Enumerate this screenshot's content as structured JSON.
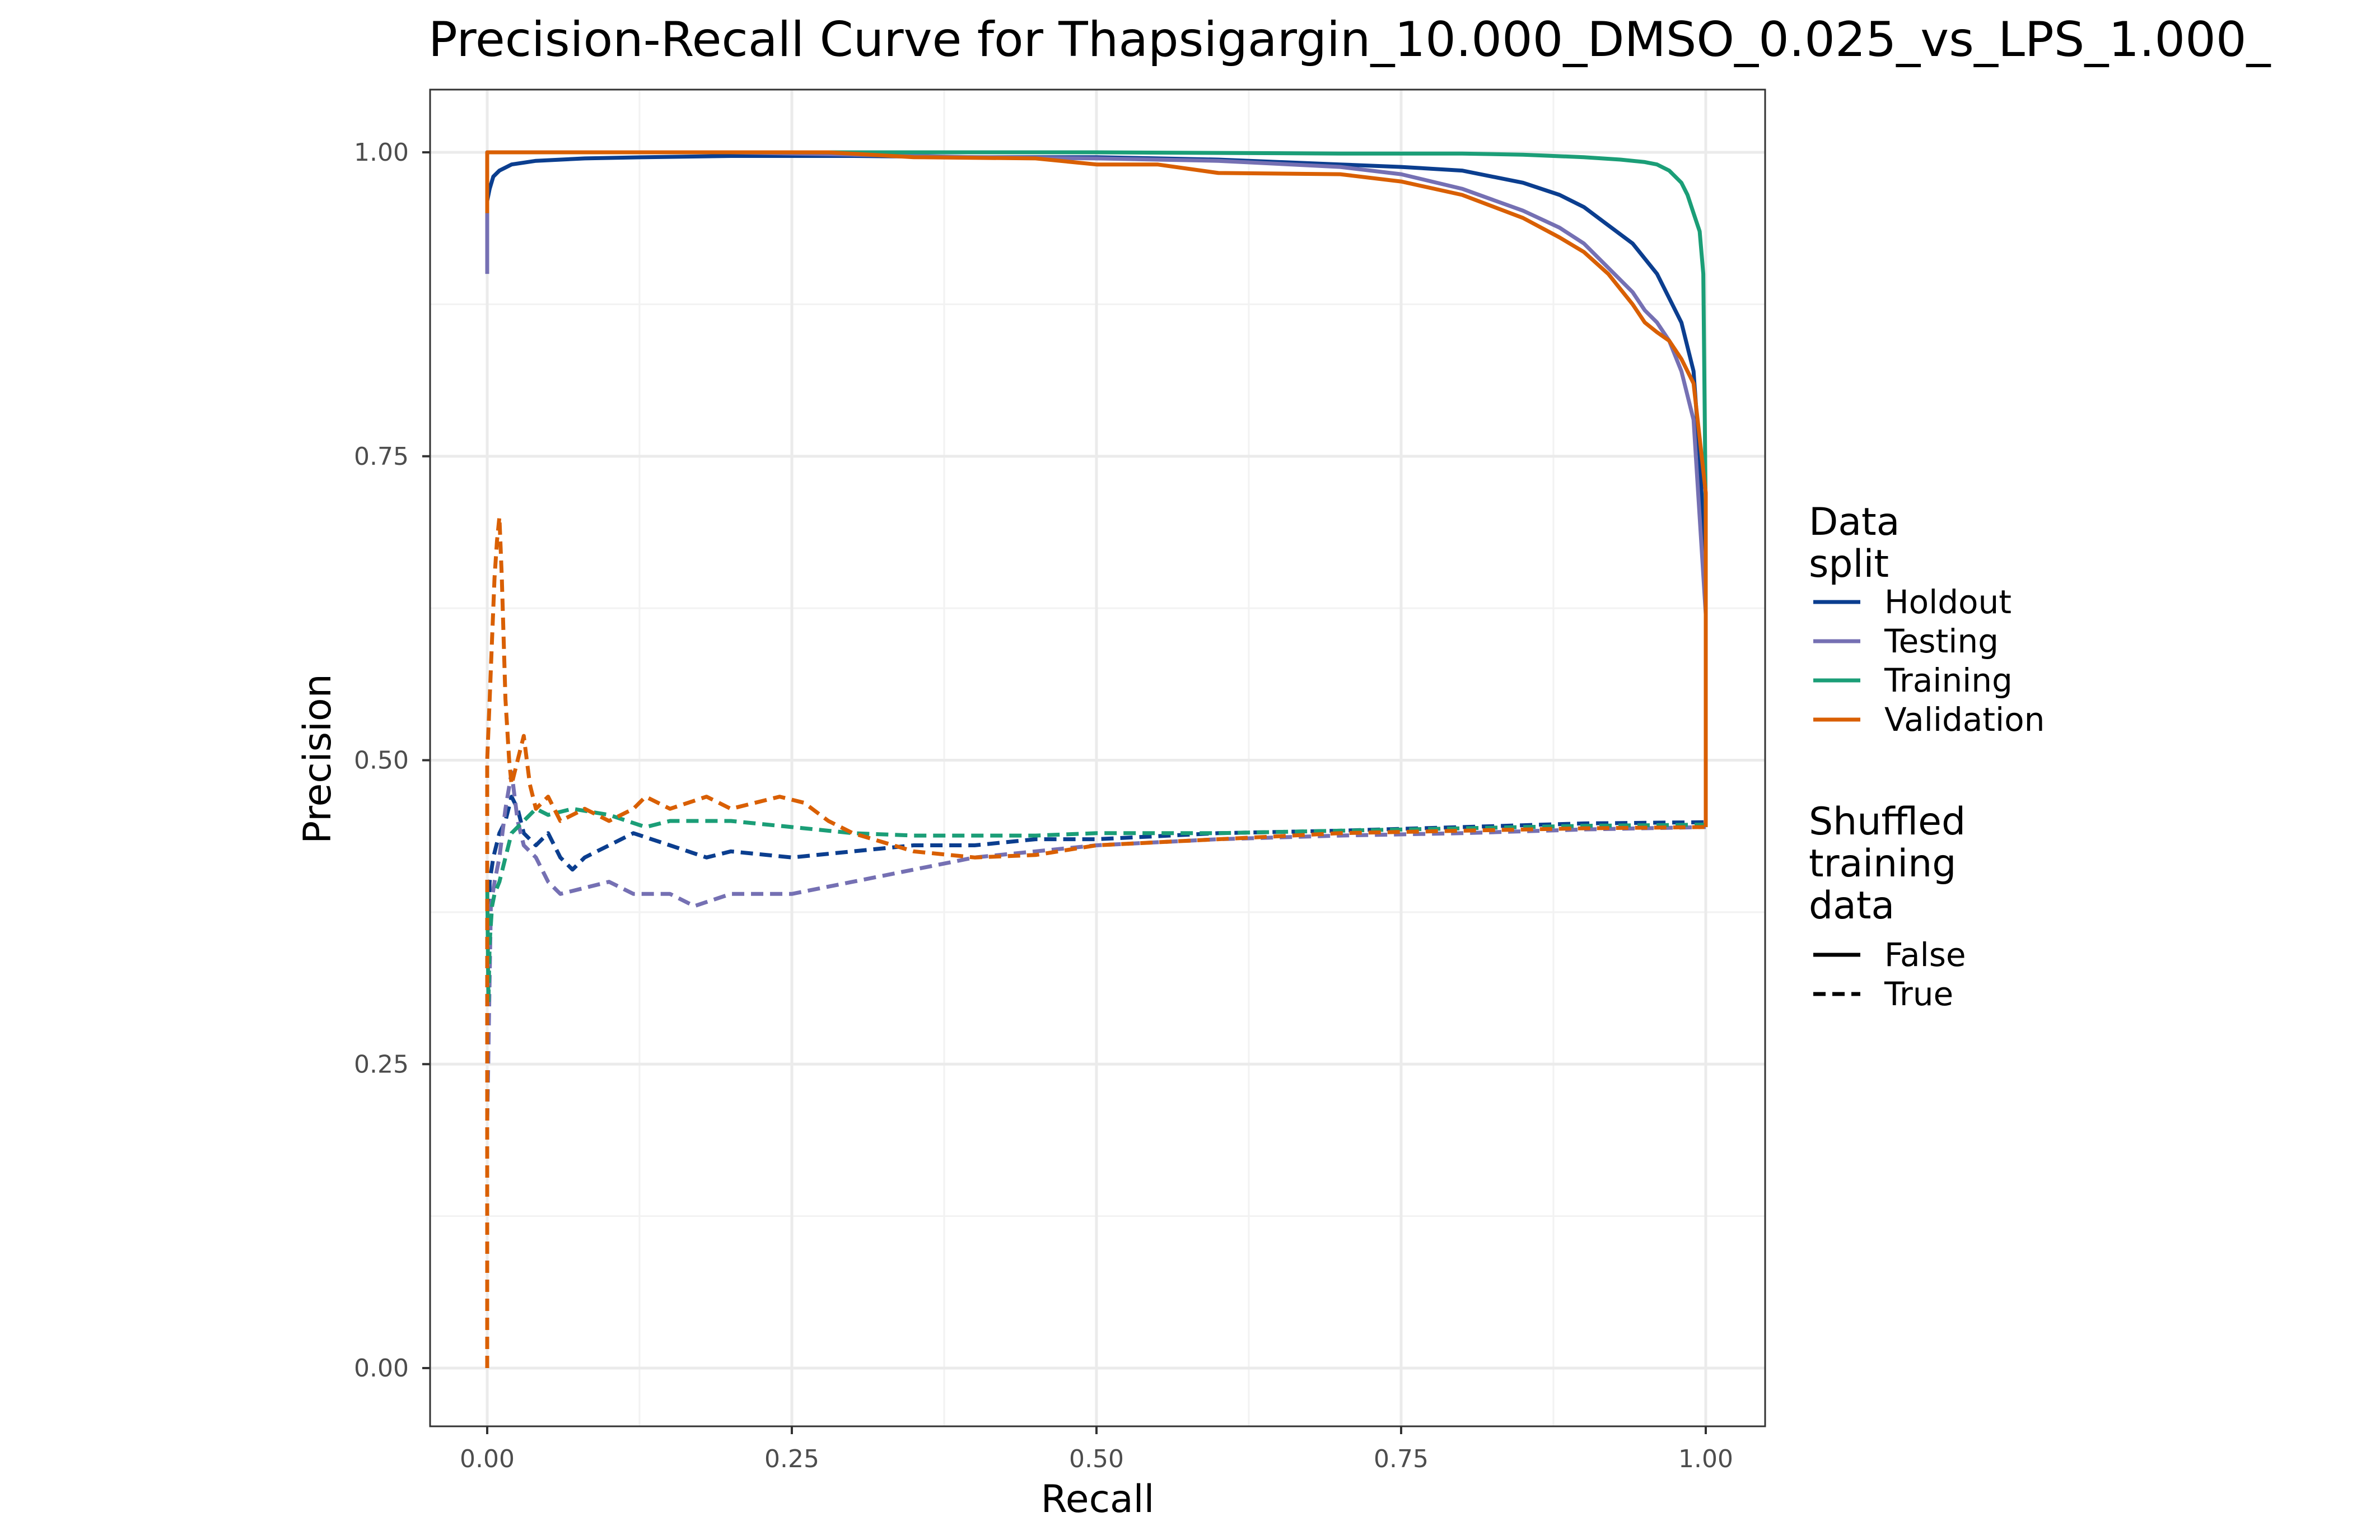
{
  "chart_data": {
    "type": "line",
    "title": "Precision-Recall Curve for Thapsigargin_10.000_DMSO_0.025_vs_LPS_1.000_",
    "xlabel": "Recall",
    "ylabel": "Precision",
    "xlim": [
      0,
      1
    ],
    "ylim": [
      0,
      1
    ],
    "x_ticks": [
      "0.00",
      "0.25",
      "0.50",
      "0.75",
      "1.00"
    ],
    "y_ticks": [
      "0.00",
      "0.25",
      "0.50",
      "0.75",
      "1.00"
    ],
    "grid": true,
    "legend_position": "right",
    "legend": {
      "color_title": "Data\nsplit",
      "color_entries": [
        "Holdout",
        "Testing",
        "Training",
        "Validation"
      ],
      "linetype_title": "Shuffled\ntraining\ndata",
      "linetype_entries": [
        "False",
        "True"
      ]
    },
    "colors": {
      "Holdout": "#0b3e8f",
      "Testing": "#7570b3",
      "Training": "#1b9e77",
      "Validation": "#d95f02"
    },
    "series": [
      {
        "name": "Holdout",
        "shuffled": "False",
        "x": [
          0.0,
          0.0,
          0.002,
          0.005,
          0.01,
          0.02,
          0.04,
          0.08,
          0.13,
          0.2,
          0.3,
          0.4,
          0.5,
          0.6,
          0.7,
          0.75,
          0.8,
          0.85,
          0.88,
          0.9,
          0.92,
          0.94,
          0.96,
          0.98,
          0.99,
          0.995,
          1.0,
          1.0
        ],
        "y": [
          0.92,
          0.96,
          0.97,
          0.98,
          0.985,
          0.99,
          0.993,
          0.995,
          0.996,
          0.997,
          0.997,
          0.996,
          0.996,
          0.994,
          0.99,
          0.988,
          0.985,
          0.975,
          0.965,
          0.955,
          0.94,
          0.925,
          0.9,
          0.86,
          0.82,
          0.75,
          0.65,
          0.445
        ]
      },
      {
        "name": "Testing",
        "shuffled": "False",
        "x": [
          0.0,
          0.0,
          0.05,
          0.1,
          0.2,
          0.3,
          0.4,
          0.5,
          0.6,
          0.7,
          0.75,
          0.8,
          0.85,
          0.88,
          0.9,
          0.92,
          0.94,
          0.95,
          0.96,
          0.97,
          0.98,
          0.99,
          0.995,
          1.0,
          1.0
        ],
        "y": [
          0.9,
          1.0,
          1.0,
          1.0,
          1.0,
          0.998,
          0.996,
          0.995,
          0.993,
          0.988,
          0.982,
          0.97,
          0.952,
          0.938,
          0.925,
          0.905,
          0.885,
          0.87,
          0.86,
          0.845,
          0.82,
          0.78,
          0.7,
          0.62,
          0.445
        ]
      },
      {
        "name": "Training",
        "shuffled": "False",
        "x": [
          0.0,
          0.0,
          0.1,
          0.3,
          0.5,
          0.7,
          0.8,
          0.85,
          0.9,
          0.93,
          0.95,
          0.96,
          0.97,
          0.98,
          0.985,
          0.99,
          0.995,
          0.998,
          1.0,
          1.0
        ],
        "y": [
          0.95,
          1.0,
          1.0,
          1.0,
          1.0,
          0.999,
          0.999,
          0.998,
          0.996,
          0.994,
          0.992,
          0.99,
          0.985,
          0.975,
          0.965,
          0.95,
          0.935,
          0.9,
          0.7,
          0.445
        ]
      },
      {
        "name": "Validation",
        "shuffled": "False",
        "x": [
          0.0,
          0.0,
          0.1,
          0.28,
          0.35,
          0.45,
          0.5,
          0.55,
          0.6,
          0.7,
          0.75,
          0.8,
          0.85,
          0.88,
          0.9,
          0.92,
          0.94,
          0.95,
          0.96,
          0.97,
          0.98,
          0.99,
          1.0,
          1.0
        ],
        "y": [
          0.95,
          1.0,
          1.0,
          1.0,
          0.996,
          0.995,
          0.99,
          0.99,
          0.983,
          0.982,
          0.976,
          0.965,
          0.946,
          0.93,
          0.918,
          0.9,
          0.875,
          0.86,
          0.852,
          0.845,
          0.83,
          0.81,
          0.72,
          0.445
        ]
      },
      {
        "name": "Holdout",
        "shuffled": "True",
        "x": [
          0.0,
          0.0,
          0.002,
          0.005,
          0.01,
          0.015,
          0.02,
          0.025,
          0.03,
          0.04,
          0.05,
          0.06,
          0.07,
          0.08,
          0.1,
          0.12,
          0.15,
          0.18,
          0.2,
          0.25,
          0.3,
          0.35,
          0.4,
          0.45,
          0.5,
          0.6,
          0.7,
          0.8,
          0.9,
          1.0
        ],
        "y": [
          0.0,
          0.3,
          0.4,
          0.42,
          0.44,
          0.45,
          0.47,
          0.46,
          0.44,
          0.43,
          0.44,
          0.42,
          0.41,
          0.42,
          0.43,
          0.44,
          0.43,
          0.42,
          0.425,
          0.42,
          0.425,
          0.43,
          0.43,
          0.435,
          0.435,
          0.44,
          0.442,
          0.445,
          0.448,
          0.449
        ]
      },
      {
        "name": "Testing",
        "shuffled": "True",
        "x": [
          0.0,
          0.0,
          0.003,
          0.006,
          0.01,
          0.015,
          0.02,
          0.025,
          0.03,
          0.04,
          0.05,
          0.06,
          0.08,
          0.1,
          0.12,
          0.15,
          0.17,
          0.2,
          0.25,
          0.3,
          0.35,
          0.4,
          0.45,
          0.5,
          0.6,
          0.7,
          0.8,
          0.9,
          1.0
        ],
        "y": [
          0.0,
          0.2,
          0.38,
          0.4,
          0.42,
          0.46,
          0.49,
          0.45,
          0.43,
          0.42,
          0.4,
          0.39,
          0.395,
          0.4,
          0.39,
          0.39,
          0.38,
          0.39,
          0.39,
          0.4,
          0.41,
          0.42,
          0.425,
          0.43,
          0.435,
          0.438,
          0.44,
          0.443,
          0.445
        ]
      },
      {
        "name": "Training",
        "shuffled": "True",
        "x": [
          0.0,
          0.0,
          0.001,
          0.002,
          0.004,
          0.006,
          0.01,
          0.015,
          0.02,
          0.03,
          0.04,
          0.05,
          0.07,
          0.1,
          0.13,
          0.15,
          0.2,
          0.25,
          0.3,
          0.35,
          0.4,
          0.45,
          0.5,
          0.6,
          0.7,
          0.8,
          0.9,
          1.0
        ],
        "y": [
          0.0,
          0.4,
          0.3,
          0.35,
          0.38,
          0.39,
          0.4,
          0.42,
          0.44,
          0.45,
          0.46,
          0.455,
          0.46,
          0.455,
          0.445,
          0.45,
          0.45,
          0.445,
          0.44,
          0.438,
          0.438,
          0.438,
          0.44,
          0.44,
          0.442,
          0.444,
          0.446,
          0.447
        ]
      },
      {
        "name": "Validation",
        "shuffled": "True",
        "x": [
          0.0,
          0.0,
          0.002,
          0.004,
          0.006,
          0.008,
          0.01,
          0.012,
          0.015,
          0.018,
          0.02,
          0.025,
          0.03,
          0.035,
          0.04,
          0.05,
          0.06,
          0.08,
          0.1,
          0.12,
          0.13,
          0.15,
          0.18,
          0.2,
          0.24,
          0.26,
          0.28,
          0.3,
          0.35,
          0.4,
          0.45,
          0.5,
          0.6,
          0.7,
          0.8,
          0.9,
          1.0
        ],
        "y": [
          0.0,
          0.5,
          0.55,
          0.6,
          0.65,
          0.68,
          0.7,
          0.65,
          0.55,
          0.5,
          0.48,
          0.5,
          0.52,
          0.48,
          0.46,
          0.47,
          0.45,
          0.46,
          0.45,
          0.46,
          0.47,
          0.46,
          0.47,
          0.46,
          0.47,
          0.465,
          0.45,
          0.44,
          0.425,
          0.42,
          0.422,
          0.43,
          0.435,
          0.44,
          0.442,
          0.444,
          0.445
        ]
      }
    ]
  }
}
